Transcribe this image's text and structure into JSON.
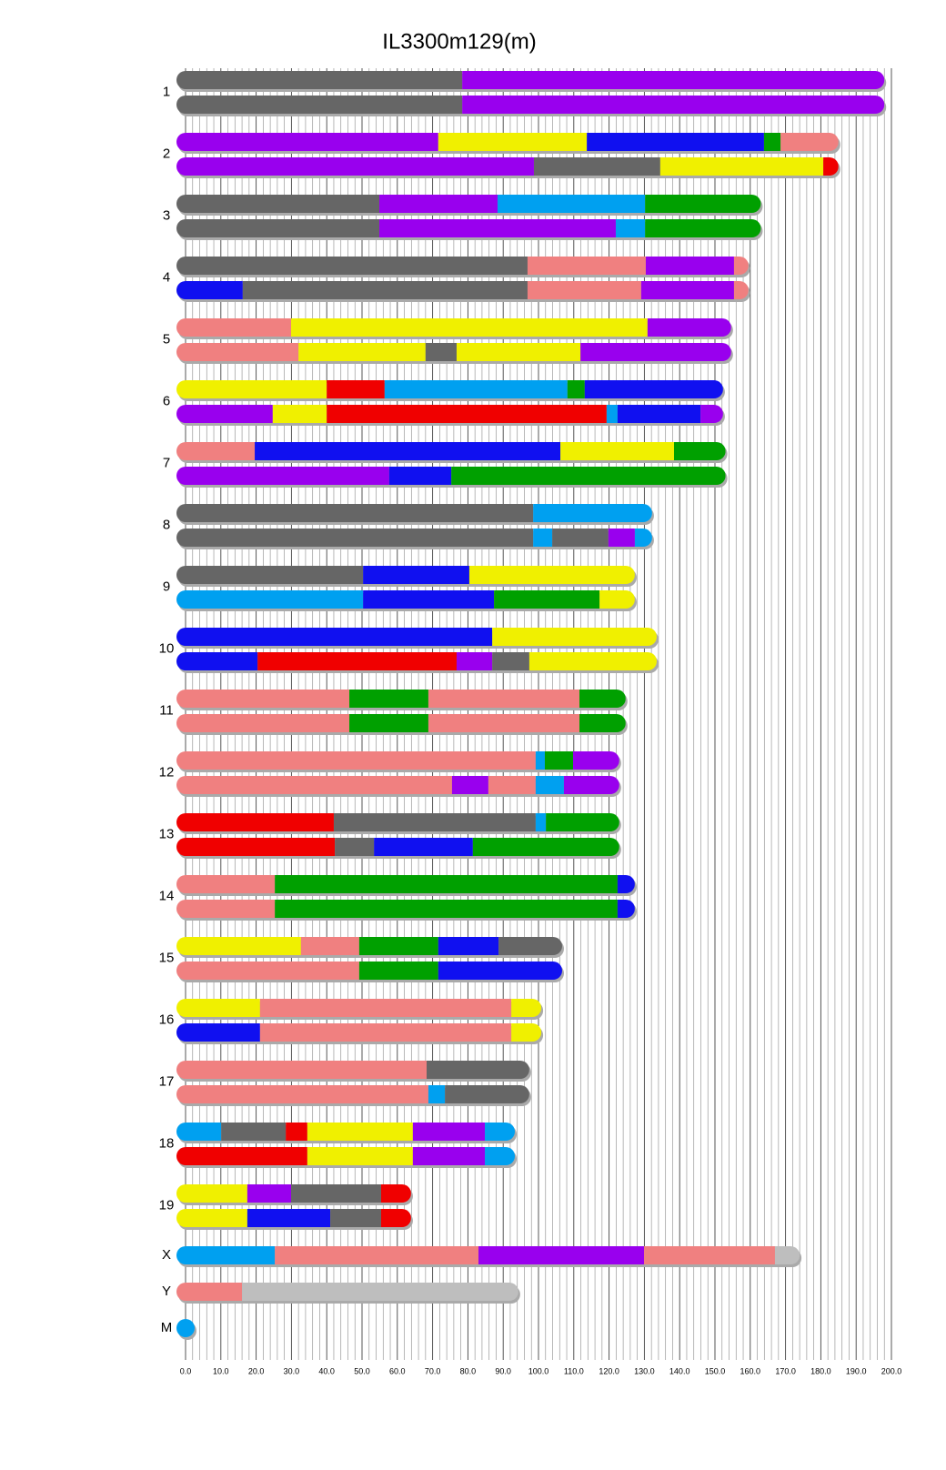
{
  "chart_data": {
    "type": "chromosome",
    "title": "IL3300m129(m)",
    "xlim": [
      0,
      200
    ],
    "xticks": [
      {
        "value": 0,
        "label": "0.0"
      },
      {
        "value": 10,
        "label": "10.0"
      },
      {
        "value": 20,
        "label": "20.0"
      },
      {
        "value": 30,
        "label": "30.0"
      },
      {
        "value": 40,
        "label": "40.0"
      },
      {
        "value": 50,
        "label": "50.0"
      },
      {
        "value": 60,
        "label": "60.0"
      },
      {
        "value": 70,
        "label": "70.0"
      },
      {
        "value": 80,
        "label": "80.0"
      },
      {
        "value": 90,
        "label": "90.0"
      },
      {
        "value": 100,
        "label": "100.0"
      },
      {
        "value": 110,
        "label": "110.0"
      },
      {
        "value": 120,
        "label": "120.0"
      },
      {
        "value": 130,
        "label": "130.0"
      },
      {
        "value": 140,
        "label": "140.0"
      },
      {
        "value": 150,
        "label": "150.0"
      },
      {
        "value": 160,
        "label": "160.0"
      },
      {
        "value": 170,
        "label": "170.0"
      },
      {
        "value": 180,
        "label": "180.0"
      },
      {
        "value": 190,
        "label": "190.0"
      },
      {
        "value": 200,
        "label": "200.0"
      }
    ],
    "minor_xticks": [
      2,
      4,
      6,
      8,
      12,
      14,
      16,
      18,
      22,
      24,
      26,
      28,
      32,
      34,
      36,
      38,
      42,
      44,
      46,
      48,
      52,
      54,
      56,
      58,
      62,
      64,
      66,
      68,
      72,
      74,
      76,
      78,
      82,
      84,
      86,
      88,
      92,
      94,
      96,
      98,
      102,
      104,
      106,
      108,
      112,
      114,
      116,
      118,
      122,
      124,
      126,
      128,
      132,
      134,
      136,
      138,
      142,
      144,
      146,
      148,
      152,
      154,
      156,
      158,
      162,
      164,
      166,
      168,
      172,
      174,
      176,
      178,
      182,
      184,
      186,
      188,
      192,
      194,
      196,
      198
    ],
    "grid": true,
    "chromosomes": [
      {
        "name": "1",
        "haplotypes": [
          [
            {
              "color": "#666666",
              "end": 78.4
            },
            {
              "color": "#9900ee",
              "end": 198
            }
          ],
          [
            {
              "color": "#666666",
              "end": 78.4
            },
            {
              "color": "#9900ee",
              "end": 198
            }
          ]
        ]
      },
      {
        "name": "2",
        "haplotypes": [
          [
            {
              "color": "#9900ee",
              "end": 71.6
            },
            {
              "color": "#f0f000",
              "end": 113.7
            },
            {
              "color": "#1010f0",
              "end": 163.9
            },
            {
              "color": "#00a000",
              "end": 168.6
            },
            {
              "color": "#f08080",
              "end": 185
            }
          ],
          [
            {
              "color": "#9900ee",
              "end": 98.7
            },
            {
              "color": "#666666",
              "end": 134.5
            },
            {
              "color": "#f0f000",
              "end": 180.7
            },
            {
              "color": "#f00000",
              "end": 185
            }
          ]
        ]
      },
      {
        "name": "3",
        "haplotypes": [
          [
            {
              "color": "#666666",
              "end": 54.9
            },
            {
              "color": "#9900ee",
              "end": 88.4
            },
            {
              "color": "#00a0f0",
              "end": 130.2
            },
            {
              "color": "#00a000",
              "end": 163
            }
          ],
          [
            {
              "color": "#666666",
              "end": 54.9
            },
            {
              "color": "#9900ee",
              "end": 121.9
            },
            {
              "color": "#00a0f0",
              "end": 130.2
            },
            {
              "color": "#00a000",
              "end": 163
            }
          ]
        ]
      },
      {
        "name": "4",
        "haplotypes": [
          [
            {
              "color": "#666666",
              "end": 96.9
            },
            {
              "color": "#f08080",
              "end": 130.4
            },
            {
              "color": "#9900ee",
              "end": 155.4
            },
            {
              "color": "#f08080",
              "end": 159.5
            }
          ],
          [
            {
              "color": "#1010f0",
              "end": 16.2
            },
            {
              "color": "#666666",
              "end": 96.9
            },
            {
              "color": "#f08080",
              "end": 129.1
            },
            {
              "color": "#9900ee",
              "end": 155.4
            },
            {
              "color": "#f08080",
              "end": 159.5
            }
          ]
        ]
      },
      {
        "name": "5",
        "haplotypes": [
          [
            {
              "color": "#f08080",
              "end": 29.9
            },
            {
              "color": "#f0f000",
              "end": 130.9
            },
            {
              "color": "#9900ee",
              "end": 154.6
            }
          ],
          [
            {
              "color": "#f08080",
              "end": 32
            },
            {
              "color": "#f0f000",
              "end": 68
            },
            {
              "color": "#666666",
              "end": 76.8
            },
            {
              "color": "#f0f000",
              "end": 111.9
            },
            {
              "color": "#9900ee",
              "end": 154.6
            }
          ]
        ]
      },
      {
        "name": "6",
        "haplotypes": [
          [
            {
              "color": "#f0f000",
              "end": 40
            },
            {
              "color": "#f00000",
              "end": 56.4
            },
            {
              "color": "#00a0f0",
              "end": 108.2
            },
            {
              "color": "#00a000",
              "end": 113.1
            },
            {
              "color": "#1010f0",
              "end": 152.3
            }
          ],
          [
            {
              "color": "#9900ee",
              "end": 24.7
            },
            {
              "color": "#f0f000",
              "end": 40
            },
            {
              "color": "#f00000",
              "end": 119.3
            },
            {
              "color": "#00a0f0",
              "end": 122.4
            },
            {
              "color": "#1010f0",
              "end": 145.9
            },
            {
              "color": "#9900ee",
              "end": 152.3
            }
          ]
        ]
      },
      {
        "name": "7",
        "haplotypes": [
          [
            {
              "color": "#f08080",
              "end": 19.6
            },
            {
              "color": "#1010f0",
              "end": 106.2
            },
            {
              "color": "#f0f000",
              "end": 138.4
            },
            {
              "color": "#00a000",
              "end": 153
            }
          ],
          [
            {
              "color": "#9900ee",
              "end": 57.7
            },
            {
              "color": "#1010f0",
              "end": 75.3
            },
            {
              "color": "#00a000",
              "end": 153
            }
          ]
        ]
      },
      {
        "name": "8",
        "haplotypes": [
          [
            {
              "color": "#666666",
              "end": 98.5
            },
            {
              "color": "#00a0f0",
              "end": 132.2
            }
          ],
          [
            {
              "color": "#666666",
              "end": 98.5
            },
            {
              "color": "#00a0f0",
              "end": 103.9
            },
            {
              "color": "#666666",
              "end": 119.8
            },
            {
              "color": "#9900ee",
              "end": 127.3
            },
            {
              "color": "#00a0f0",
              "end": 132.2
            }
          ]
        ]
      },
      {
        "name": "9",
        "haplotypes": [
          [
            {
              "color": "#666666",
              "end": 50.3
            },
            {
              "color": "#1010f0",
              "end": 80.4
            },
            {
              "color": "#f0f000",
              "end": 127.3
            }
          ],
          [
            {
              "color": "#00a0f0",
              "end": 50.3
            },
            {
              "color": "#1010f0",
              "end": 87.4
            },
            {
              "color": "#00a000",
              "end": 117.3
            },
            {
              "color": "#f0f000",
              "end": 127.3
            }
          ]
        ]
      },
      {
        "name": "10",
        "haplotypes": [
          [
            {
              "color": "#1010f0",
              "end": 86.9
            },
            {
              "color": "#f0f000",
              "end": 133.5
            }
          ],
          [
            {
              "color": "#1010f0",
              "end": 20.4
            },
            {
              "color": "#f00000",
              "end": 76.8
            },
            {
              "color": "#9900ee",
              "end": 86.9
            },
            {
              "color": "#666666",
              "end": 97.4
            },
            {
              "color": "#f0f000",
              "end": 133.5
            }
          ]
        ]
      },
      {
        "name": "11",
        "haplotypes": [
          [
            {
              "color": "#f08080",
              "end": 46.4
            },
            {
              "color": "#00a000",
              "end": 68.8
            },
            {
              "color": "#f08080",
              "end": 111.6
            },
            {
              "color": "#00a000",
              "end": 124.7
            }
          ],
          [
            {
              "color": "#f08080",
              "end": 46.4
            },
            {
              "color": "#00a000",
              "end": 68.8
            },
            {
              "color": "#f08080",
              "end": 111.6
            },
            {
              "color": "#00a000",
              "end": 124.7
            }
          ]
        ]
      },
      {
        "name": "12",
        "haplotypes": [
          [
            {
              "color": "#f08080",
              "end": 99.2
            },
            {
              "color": "#00a0f0",
              "end": 101.8
            },
            {
              "color": "#00a000",
              "end": 109.8
            },
            {
              "color": "#9900ee",
              "end": 122.9
            }
          ],
          [
            {
              "color": "#f08080",
              "end": 75.5
            },
            {
              "color": "#9900ee",
              "end": 85.8
            },
            {
              "color": "#f08080",
              "end": 99.2
            },
            {
              "color": "#00a0f0",
              "end": 107.2
            },
            {
              "color": "#9900ee",
              "end": 122.9
            }
          ]
        ]
      },
      {
        "name": "13",
        "haplotypes": [
          [
            {
              "color": "#f00000",
              "end": 42
            },
            {
              "color": "#666666",
              "end": 99.2
            },
            {
              "color": "#00a0f0",
              "end": 102.1
            },
            {
              "color": "#00a000",
              "end": 122.9
            }
          ],
          [
            {
              "color": "#f00000",
              "end": 42.3
            },
            {
              "color": "#666666",
              "end": 53.4
            },
            {
              "color": "#1010f0",
              "end": 81.4
            },
            {
              "color": "#00a000",
              "end": 122.9
            }
          ]
        ]
      },
      {
        "name": "14",
        "haplotypes": [
          [
            {
              "color": "#f08080",
              "end": 25.3
            },
            {
              "color": "#00a000",
              "end": 122.4
            },
            {
              "color": "#1010f0",
              "end": 127.3
            }
          ],
          [
            {
              "color": "#f08080",
              "end": 25.3
            },
            {
              "color": "#00a000",
              "end": 122.4
            },
            {
              "color": "#1010f0",
              "end": 127.3
            }
          ]
        ]
      },
      {
        "name": "15",
        "haplotypes": [
          [
            {
              "color": "#f0f000",
              "end": 32.7
            },
            {
              "color": "#f08080",
              "end": 49.2
            },
            {
              "color": "#00a000",
              "end": 71.6
            },
            {
              "color": "#1010f0",
              "end": 88.7
            },
            {
              "color": "#666666",
              "end": 106.7
            }
          ],
          [
            {
              "color": "#f08080",
              "end": 49.2
            },
            {
              "color": "#00a000",
              "end": 71.6
            },
            {
              "color": "#1010f0",
              "end": 106.7
            }
          ]
        ]
      },
      {
        "name": "16",
        "haplotypes": [
          [
            {
              "color": "#f0f000",
              "end": 21.1
            },
            {
              "color": "#f08080",
              "end": 92.3
            },
            {
              "color": "#f0f000",
              "end": 100.8
            }
          ],
          [
            {
              "color": "#1010f0",
              "end": 21.1
            },
            {
              "color": "#f08080",
              "end": 92.3
            },
            {
              "color": "#f0f000",
              "end": 100.8
            }
          ]
        ]
      },
      {
        "name": "17",
        "haplotypes": [
          [
            {
              "color": "#f08080",
              "end": 68.3
            },
            {
              "color": "#666666",
              "end": 97.4
            }
          ],
          [
            {
              "color": "#f08080",
              "end": 68.8
            },
            {
              "color": "#00a0f0",
              "end": 73.5
            },
            {
              "color": "#666666",
              "end": 97.4
            }
          ]
        ]
      },
      {
        "name": "18",
        "haplotypes": [
          [
            {
              "color": "#00a0f0",
              "end": 10.1
            },
            {
              "color": "#666666",
              "end": 28.4
            },
            {
              "color": "#f00000",
              "end": 34.5
            },
            {
              "color": "#f0f000",
              "end": 64.4
            },
            {
              "color": "#9900ee",
              "end": 84.8
            },
            {
              "color": "#00a0f0",
              "end": 93.3
            }
          ],
          [
            {
              "color": "#f00000",
              "end": 34.5
            },
            {
              "color": "#f0f000",
              "end": 64.4
            },
            {
              "color": "#9900ee",
              "end": 84.8
            },
            {
              "color": "#00a0f0",
              "end": 93.3
            }
          ]
        ]
      },
      {
        "name": "19",
        "haplotypes": [
          [
            {
              "color": "#f0f000",
              "end": 17.5
            },
            {
              "color": "#9900ee",
              "end": 29.9
            },
            {
              "color": "#666666",
              "end": 55.4
            },
            {
              "color": "#f00000",
              "end": 63.9
            }
          ],
          [
            {
              "color": "#f0f000",
              "end": 17.5
            },
            {
              "color": "#1010f0",
              "end": 41
            },
            {
              "color": "#666666",
              "end": 55.4
            },
            {
              "color": "#f00000",
              "end": 63.9
            }
          ]
        ]
      },
      {
        "name": "X",
        "haplotypes": [
          [
            {
              "color": "#00a0f0",
              "end": 25.3
            },
            {
              "color": "#f08080",
              "end": 83
            },
            {
              "color": "#9900ee",
              "end": 129.9
            },
            {
              "color": "#f08080",
              "end": 167
            },
            {
              "color": "#bebebe",
              "end": 174
            }
          ]
        ]
      },
      {
        "name": "Y",
        "haplotypes": [
          [
            {
              "color": "#f08080",
              "end": 16
            },
            {
              "color": "#bebebe",
              "end": 94.3
            }
          ]
        ]
      },
      {
        "name": "M",
        "haplotypes": [
          [
            {
              "color": "#00a0f0",
              "end": 0.5
            }
          ]
        ]
      }
    ]
  }
}
